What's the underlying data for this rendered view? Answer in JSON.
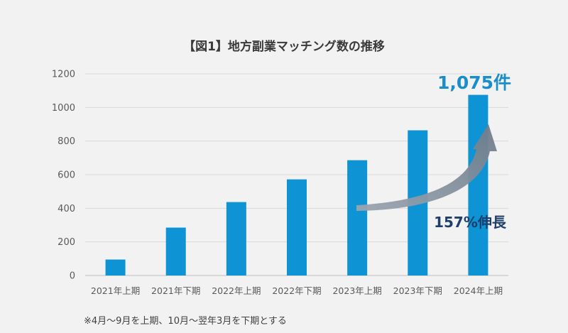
{
  "chart_data": {
    "type": "bar",
    "title": "【図1】地方副業マッチング数の推移",
    "categories": [
      "2021年上期",
      "2021年下期",
      "2022年上期",
      "2022年下期",
      "2023年上期",
      "2023年下期",
      "2024年上期"
    ],
    "values": [
      95,
      285,
      437,
      572,
      686,
      864,
      1075
    ],
    "ylim": [
      0,
      1200
    ],
    "yticks": [
      0,
      200,
      400,
      600,
      800,
      1000,
      1200
    ],
    "xlabel": "",
    "ylabel": "",
    "grid": true,
    "bar_color": "#0e93d4",
    "annotations": {
      "last_value_label": "1,075件",
      "last_value_color": "#1a8ec9",
      "growth_label": "157%伸長",
      "growth_color": "#1f3f6b",
      "arrow_color": "#7f8c99"
    },
    "footnote": "※4月〜9月を上期、10月〜翌年3月を下期とする"
  }
}
